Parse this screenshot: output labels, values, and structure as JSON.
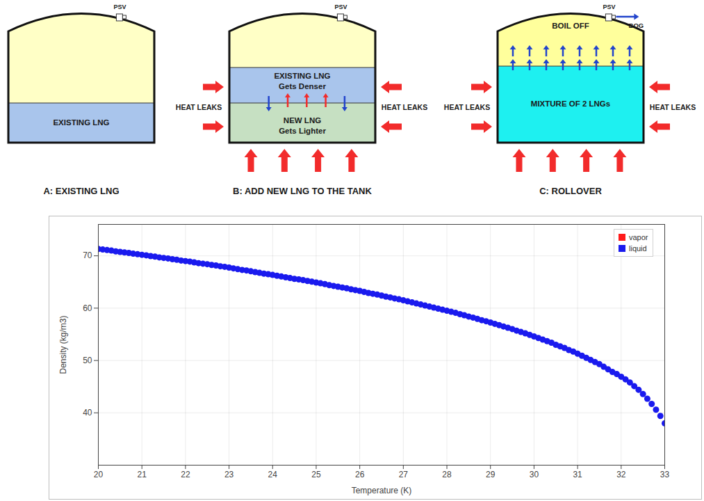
{
  "diagram": {
    "panels": [
      {
        "caption": "A: EXISTING LNG",
        "psv": "PSV",
        "vapor": {
          "color": "#ffffc6"
        },
        "layers": [
          {
            "lines": [
              "EXISTING LNG"
            ],
            "color": "#a9c5ec"
          }
        ]
      },
      {
        "caption": "B: ADD NEW LNG TO THE TANK",
        "psv": "PSV",
        "vapor": {
          "color": "#ffffc6"
        },
        "heat_leaks": [
          "HEAT LEAKS",
          "HEAT LEAKS"
        ],
        "layers": [
          {
            "lines": [
              "EXISTING LNG",
              "Gets Denser"
            ],
            "color": "#a9c5ec"
          },
          {
            "lines": [
              "NEW LNG",
              "Gets Lighter"
            ],
            "color": "#c6e0c2"
          }
        ]
      },
      {
        "caption": "C: ROLLOVER",
        "psv": "PSV",
        "vent": "BOG",
        "vapor": {
          "lines": [
            "BOIL OFF"
          ],
          "color": "#ffff9c"
        },
        "heat_leaks": [
          "HEAT LEAKS",
          "HEAT LEAKS"
        ],
        "layers": [
          {
            "lines": [
              "MIXTURE OF 2 LNGs"
            ],
            "color": "#1ef0f0"
          }
        ]
      }
    ]
  },
  "chart_data": {
    "type": "scatter",
    "x_label": "Temperature (K)",
    "y_label": "Density (kg/m3)",
    "x": [
      20.0,
      20.1,
      20.2,
      20.3,
      20.4,
      20.5,
      20.6,
      20.7,
      20.8,
      20.9,
      21.0,
      21.1,
      21.2,
      21.3,
      21.4,
      21.5,
      21.6,
      21.7,
      21.8,
      21.9,
      22.0,
      22.1,
      22.2,
      22.3,
      22.4,
      22.5,
      22.6,
      22.7,
      22.8,
      22.9,
      23.0,
      23.1,
      23.2,
      23.3,
      23.4,
      23.5,
      23.6,
      23.7,
      23.8,
      23.9,
      24.0,
      24.1,
      24.2,
      24.3,
      24.4,
      24.5,
      24.6,
      24.7,
      24.8,
      24.9,
      25.0,
      25.1,
      25.2,
      25.3,
      25.4,
      25.5,
      25.6,
      25.7,
      25.8,
      25.9,
      26.0,
      26.1,
      26.2,
      26.3,
      26.4,
      26.5,
      26.6,
      26.7,
      26.8,
      26.9,
      27.0,
      27.1,
      27.2,
      27.3,
      27.4,
      27.5,
      27.6,
      27.7,
      27.8,
      27.9,
      28.0,
      28.1,
      28.2,
      28.3,
      28.4,
      28.5,
      28.6,
      28.7,
      28.8,
      28.9,
      29.0,
      29.1,
      29.2,
      29.3,
      29.4,
      29.5,
      29.6,
      29.7,
      29.8,
      29.9,
      30.0,
      30.1,
      30.2,
      30.3,
      30.4,
      30.5,
      30.6,
      30.7,
      30.8,
      30.9,
      31.0,
      31.1,
      31.2,
      31.3,
      31.4,
      31.5,
      31.6,
      31.7,
      31.8,
      31.9,
      32.0,
      32.1,
      32.2,
      32.3,
      32.4,
      32.5,
      32.6,
      32.7,
      32.8,
      32.9,
      33.0
    ],
    "series": [
      {
        "name": "vapor",
        "color": "#ff1a1a",
        "marker": "square",
        "values": [
          null,
          null,
          null,
          null,
          null,
          null,
          null,
          null,
          null,
          null,
          null,
          null,
          null,
          null,
          null,
          null,
          null,
          null,
          null,
          null,
          null,
          null,
          null,
          null,
          null,
          null,
          null,
          null,
          null,
          null,
          null,
          null,
          null,
          null,
          null,
          null,
          null,
          null,
          null,
          null,
          null,
          null,
          null,
          null,
          null,
          null,
          null,
          null,
          null,
          null,
          null,
          null,
          null,
          null,
          null,
          null,
          null,
          null,
          null,
          null,
          null,
          null,
          null,
          null,
          null,
          null,
          null,
          null,
          null,
          null,
          null,
          null,
          null,
          null,
          null,
          null,
          null,
          null,
          null,
          null,
          null,
          null,
          null,
          null,
          null,
          null,
          null,
          null,
          null,
          null,
          null,
          null,
          null,
          null,
          null,
          null,
          null,
          null,
          null,
          null,
          null,
          null,
          null,
          null,
          null,
          null,
          null,
          null,
          null,
          null,
          null,
          null,
          null,
          null,
          null,
          null,
          null,
          null,
          null,
          null,
          null,
          null,
          null,
          null,
          null,
          null,
          null,
          null,
          null,
          null,
          null
        ]
      },
      {
        "name": "liquid",
        "color": "#1a1aee",
        "marker": "circle",
        "values": [
          71.3,
          71.2,
          71.1,
          71.0,
          70.85,
          70.75,
          70.65,
          70.55,
          70.4,
          70.3,
          70.2,
          70.1,
          69.95,
          69.85,
          69.7,
          69.6,
          69.5,
          69.35,
          69.25,
          69.1,
          69.0,
          68.9,
          68.75,
          68.6,
          68.5,
          68.4,
          68.25,
          68.15,
          68.0,
          67.9,
          67.75,
          67.6,
          67.45,
          67.3,
          67.2,
          67.05,
          66.9,
          66.75,
          66.6,
          66.5,
          66.35,
          66.2,
          66.05,
          65.9,
          65.75,
          65.6,
          65.5,
          65.35,
          65.2,
          65.05,
          64.9,
          64.75,
          64.6,
          64.4,
          64.25,
          64.1,
          63.95,
          63.8,
          63.6,
          63.45,
          63.3,
          63.1,
          62.9,
          62.75,
          62.6,
          62.4,
          62.2,
          62.05,
          61.85,
          61.7,
          61.5,
          61.3,
          61.1,
          60.9,
          60.7,
          60.5,
          60.3,
          60.1,
          59.9,
          59.7,
          59.5,
          59.3,
          59.1,
          58.85,
          58.65,
          58.4,
          58.2,
          57.95,
          57.7,
          57.5,
          57.25,
          57.0,
          56.75,
          56.5,
          56.25,
          56.0,
          55.7,
          55.45,
          55.2,
          54.9,
          54.6,
          54.3,
          54.0,
          53.7,
          53.4,
          53.0,
          52.7,
          52.4,
          52.0,
          51.7,
          51.3,
          50.9,
          50.5,
          50.1,
          49.7,
          49.3,
          48.8,
          48.3,
          47.8,
          47.4,
          46.9,
          46.4,
          45.8,
          45.1,
          44.4,
          43.6,
          42.7,
          41.7,
          40.6,
          39.4,
          38.0
        ]
      }
    ],
    "xlim": [
      20,
      33
    ],
    "xticks": [
      20,
      21,
      22,
      23,
      24,
      25,
      26,
      27,
      28,
      29,
      30,
      31,
      32,
      33
    ],
    "ylim": [
      30,
      76
    ],
    "yticks": [
      40,
      50,
      60,
      70
    ],
    "grid": true,
    "legend": "top-right"
  }
}
